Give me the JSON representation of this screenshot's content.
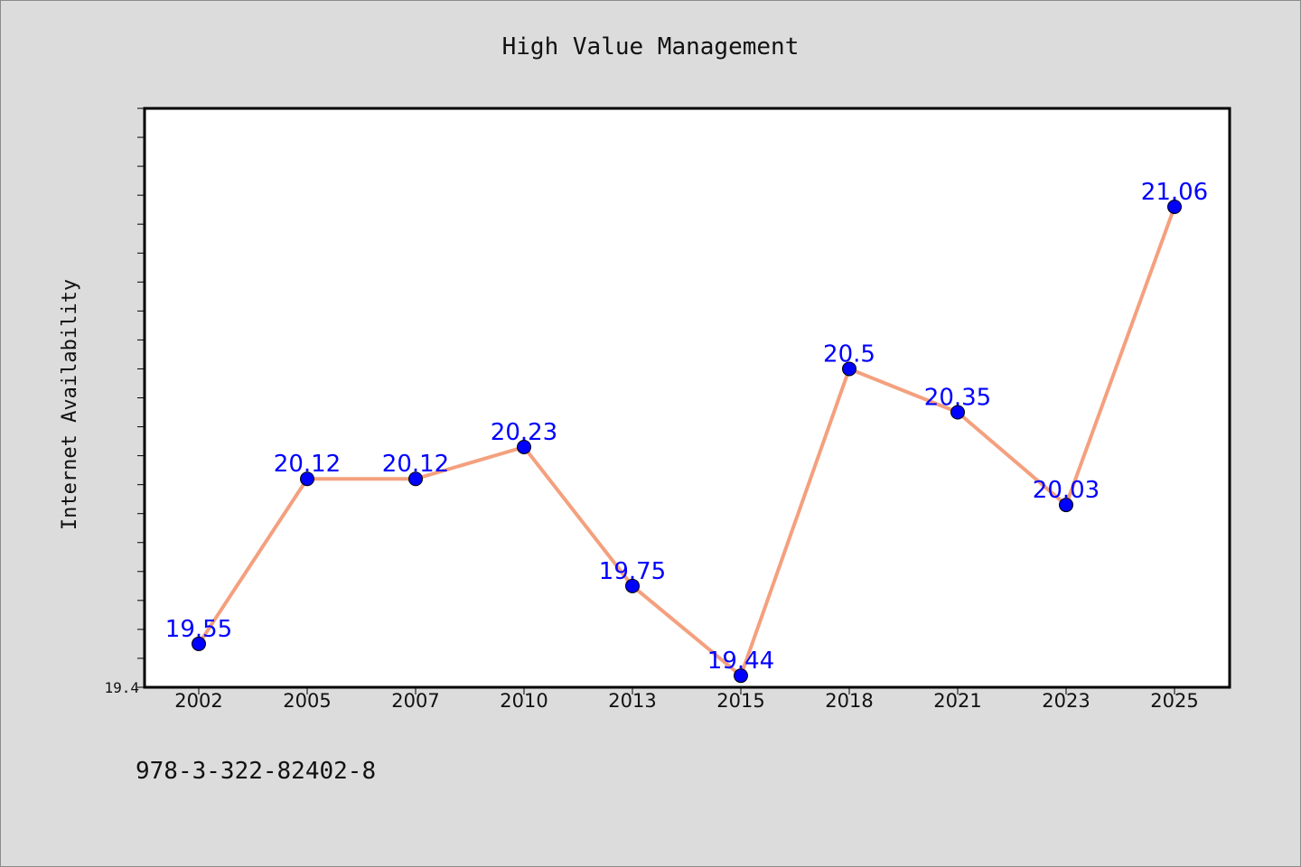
{
  "colors": {
    "background": "#dcdcdc",
    "plot_background": "#ffffff",
    "line": "#f4a07e",
    "marker": "#0000ff",
    "data_label": "#0000ff"
  },
  "footer": {
    "isbn": "978-3-322-82402-8"
  },
  "chart_data": {
    "type": "line",
    "title": "High Value Management",
    "xlabel": "",
    "ylabel": "Internet Availability",
    "categories": [
      "2002",
      "2005",
      "2007",
      "2010",
      "2013",
      "2015",
      "2018",
      "2021",
      "2023",
      "2025"
    ],
    "series": [
      {
        "values": [
          19.55,
          20.12,
          20.12,
          20.23,
          19.75,
          19.44,
          20.5,
          20.35,
          20.03,
          21.06
        ]
      }
    ],
    "data_labels": [
      "19.55",
      "20.12",
      "20.12",
      "20.23",
      "19.75",
      "19.44",
      "20.5",
      "20.35",
      "20.03",
      "21.06"
    ],
    "ylim": [
      19.4,
      21.4
    ],
    "y_tick_labels": [
      "19.4"
    ],
    "grid": false,
    "legend": "none"
  }
}
